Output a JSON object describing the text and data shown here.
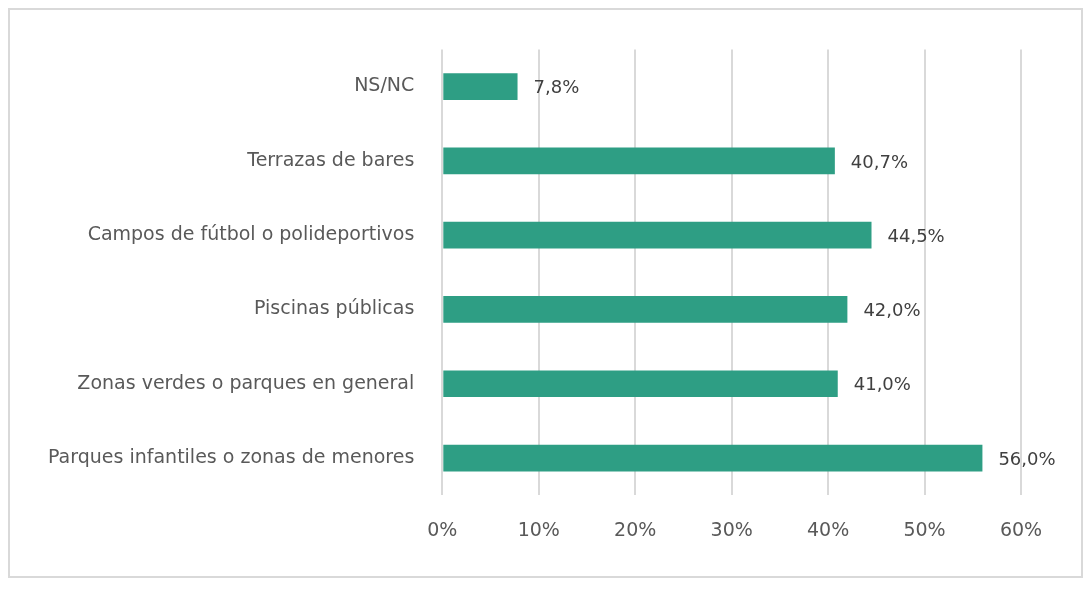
{
  "chart_data": {
    "type": "bar",
    "orientation": "horizontal",
    "categories": [
      "NS/NC",
      "Terrazas de bares",
      "Campos de fútbol o polideportivos",
      "Piscinas públicas",
      "Zonas verdes o parques en general",
      "Parques infantiles o zonas de menores"
    ],
    "values": [
      7.8,
      40.7,
      44.5,
      42.0,
      41.0,
      56.0
    ],
    "value_labels": [
      "7,8%",
      "40,7%",
      "44,5%",
      "42,0%",
      "41,0%",
      "56,0%"
    ],
    "color": "#2e9e84",
    "xlim": [
      0,
      60
    ],
    "xticks": [
      {
        "value": 0,
        "label": "0%"
      },
      {
        "value": 10,
        "label": "10%"
      },
      {
        "value": 20,
        "label": "20%"
      },
      {
        "value": 30,
        "label": "30%"
      },
      {
        "value": 40,
        "label": "40%"
      },
      {
        "value": 50,
        "label": "50%"
      },
      {
        "value": 60,
        "label": "60%"
      }
    ],
    "grid": "x",
    "legend": false
  }
}
